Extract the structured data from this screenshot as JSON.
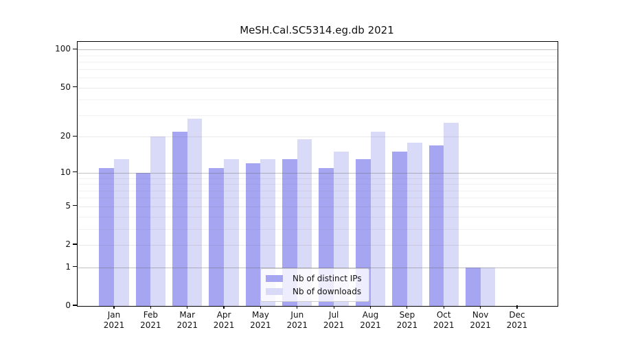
{
  "chart_data": {
    "type": "bar",
    "title": "MeSH.Cal.SC5314.eg.db 2021",
    "categories": [
      "Jan",
      "Feb",
      "Mar",
      "Apr",
      "May",
      "Jun",
      "Jul",
      "Aug",
      "Sep",
      "Oct",
      "Nov",
      "Dec"
    ],
    "category_year": "2021",
    "series": [
      {
        "name": "Nb of distinct IPs",
        "color": "#a5a5f2",
        "values": [
          11,
          10,
          22,
          11,
          12,
          13,
          11,
          13,
          15,
          17,
          1,
          0
        ]
      },
      {
        "name": "Nb of downloads",
        "color": "#d9d9f8",
        "values": [
          13,
          20,
          28,
          13,
          13,
          19,
          15,
          22,
          18,
          26,
          1,
          0
        ]
      }
    ],
    "xlabel": "",
    "ylabel": "",
    "yscale": "log1p",
    "ylim": [
      0,
      115
    ],
    "yticks": [
      0,
      1,
      2,
      5,
      10,
      20,
      50,
      100
    ],
    "decade_ticks": [
      1,
      10,
      100
    ],
    "minor_yticks": [
      3,
      4,
      6,
      7,
      8,
      9,
      30,
      40,
      60,
      70,
      80,
      90
    ],
    "grid": "on",
    "legend_position": "lower center"
  }
}
